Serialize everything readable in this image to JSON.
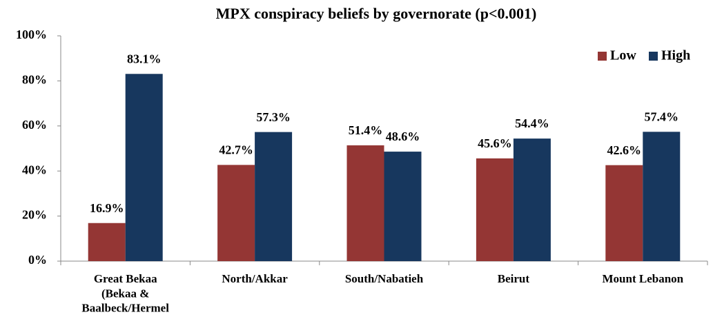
{
  "chart_data": {
    "type": "bar",
    "title": "MPX conspiracy beliefs by governorate (p<0.001)",
    "categories": [
      "Great Bekaa\n(Bekaa &\nBaalbeck/Hermel",
      "North/Akkar",
      "South/Nabatieh",
      "Beirut",
      "Mount Lebanon"
    ],
    "series": [
      {
        "name": "Low",
        "color": "#943634",
        "values": [
          16.9,
          42.7,
          51.4,
          45.6,
          42.6
        ],
        "value_labels": [
          "16.9%",
          "42.7%",
          "51.4%",
          "45.6%",
          "42.6%"
        ]
      },
      {
        "name": "High",
        "color": "#17375e",
        "values": [
          83.1,
          57.3,
          48.6,
          54.4,
          57.4
        ],
        "value_labels": [
          "83.1%",
          "57.3%",
          "48.6%",
          "54.4%",
          "57.4%"
        ]
      }
    ],
    "ylim": [
      0,
      100
    ],
    "yticks": [
      {
        "value": 0,
        "label": "0%"
      },
      {
        "value": 20,
        "label": "20%"
      },
      {
        "value": 40,
        "label": "40%"
      },
      {
        "value": 60,
        "label": "60%"
      },
      {
        "value": 80,
        "label": "80%"
      },
      {
        "value": 100,
        "label": "100%"
      }
    ],
    "grid": false,
    "legend": "top-right"
  }
}
